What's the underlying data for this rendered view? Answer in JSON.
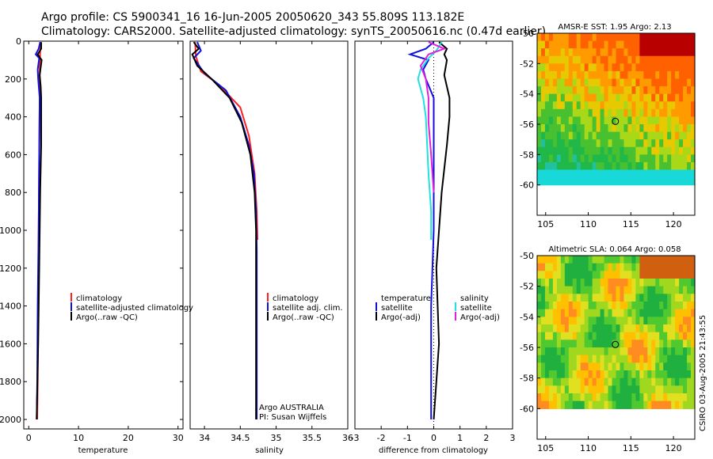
{
  "header": {
    "line1": "Argo profile: CS 5900341_16 16-Jun-2005 20050620_343 55.809S 113.182E",
    "line2": "Climatology: CARS2000. Satellite-adjusted climatology: synTS_20050616.nc (0.47d earlier)"
  },
  "colors": {
    "climatology": "#ff2020",
    "satellite": "#1010e0",
    "argo": "#000000",
    "salinity_sat": "#20e0e0",
    "salinity_argo": "#e020e0"
  },
  "chart_data": [
    {
      "type": "line",
      "id": "temperature",
      "xlabel": "temperature",
      "ylabel": "",
      "xlim": [
        -1,
        31
      ],
      "ylim": [
        2050,
        0
      ],
      "xticks": [
        "0",
        "10",
        "20",
        "30"
      ],
      "yticks": [
        "0",
        "200",
        "400",
        "600",
        "800",
        "1000",
        "1200",
        "1400",
        "1600",
        "1800",
        "2000"
      ],
      "legend": [
        "climatology",
        "satellite-adjusted climatology",
        "Argo(..raw -QC)"
      ],
      "series": [
        {
          "name": "climatology",
          "points": [
            [
              2.3,
              5
            ],
            [
              2.3,
              60
            ],
            [
              2.2,
              150
            ],
            [
              2.2,
              300
            ],
            [
              2.1,
              600
            ],
            [
              2.0,
              1000
            ],
            [
              1.9,
              1400
            ],
            [
              1.8,
              1800
            ],
            [
              1.7,
              2000
            ]
          ]
        },
        {
          "name": "satellite-adjusted climatology",
          "points": [
            [
              2.3,
              5
            ],
            [
              2.0,
              40
            ],
            [
              1.4,
              70
            ],
            [
              2.1,
              90
            ],
            [
              1.8,
              150
            ],
            [
              1.9,
              200
            ],
            [
              2.2,
              300
            ],
            [
              2.1,
              600
            ],
            [
              2.0,
              1000
            ],
            [
              1.8,
              1400
            ],
            [
              1.7,
              1800
            ],
            [
              1.6,
              2000
            ]
          ]
        },
        {
          "name": "Argo(..raw -QC)",
          "points": [
            [
              2.5,
              5
            ],
            [
              2.5,
              40
            ],
            [
              1.8,
              70
            ],
            [
              2.6,
              100
            ],
            [
              2.2,
              180
            ],
            [
              2.4,
              240
            ],
            [
              2.5,
              300
            ],
            [
              2.5,
              400
            ],
            [
              2.5,
              550
            ],
            [
              2.3,
              800
            ],
            [
              2.1,
              1200
            ],
            [
              1.9,
              1600
            ],
            [
              1.6,
              2000
            ]
          ]
        }
      ]
    },
    {
      "type": "line",
      "id": "salinity",
      "xlabel": "salinity",
      "xlim": [
        33.8,
        36.0
      ],
      "ylim": [
        2050,
        0
      ],
      "xticks": [
        "34",
        "34.5",
        "35",
        "35.5",
        "36"
      ],
      "legend": [
        "climatology",
        "satellite adj. clim.",
        "Argo(..raw -QC)"
      ],
      "series": [
        {
          "name": "climatology",
          "points": [
            [
              33.87,
              5
            ],
            [
              33.88,
              80
            ],
            [
              33.95,
              160
            ],
            [
              34.2,
              230
            ],
            [
              34.5,
              350
            ],
            [
              34.62,
              500
            ],
            [
              34.7,
              700
            ],
            [
              34.73,
              900
            ],
            [
              34.74,
              1050
            ]
          ]
        },
        {
          "name": "satellite adj. clim.",
          "points": [
            [
              33.9,
              5
            ],
            [
              33.95,
              50
            ],
            [
              33.85,
              90
            ],
            [
              34.0,
              170
            ],
            [
              34.3,
              260
            ],
            [
              34.5,
              400
            ],
            [
              34.62,
              550
            ],
            [
              34.69,
              700
            ],
            [
              34.72,
              900
            ],
            [
              34.73,
              1100
            ],
            [
              34.73,
              1500
            ],
            [
              34.73,
              2000
            ]
          ]
        },
        {
          "name": "Argo(..raw -QC)",
          "points": [
            [
              33.85,
              5
            ],
            [
              33.92,
              40
            ],
            [
              33.83,
              70
            ],
            [
              33.9,
              130
            ],
            [
              34.1,
              200
            ],
            [
              34.35,
              300
            ],
            [
              34.52,
              430
            ],
            [
              34.64,
              600
            ],
            [
              34.7,
              800
            ],
            [
              34.72,
              1000
            ],
            [
              34.72,
              1400
            ],
            [
              34.72,
              2000
            ]
          ]
        }
      ],
      "annotation": [
        "Argo AUSTRALIA",
        "PI: Susan Wijffels"
      ]
    },
    {
      "type": "line",
      "id": "difference",
      "xlabel": "difference from climatology",
      "xlim": [
        -3,
        3
      ],
      "ylim": [
        2050,
        0
      ],
      "xticks": [
        "-3",
        "-2",
        "-1",
        "0",
        "1",
        "2",
        "3"
      ],
      "legend_left": [
        "temperature",
        "satellite",
        "Argo(-adj)"
      ],
      "legend_right": [
        "salinity",
        "satellite",
        "Argo(-adj)"
      ],
      "series": [
        {
          "name": "temperature satellite",
          "points": [
            [
              0.0,
              5
            ],
            [
              -0.3,
              40
            ],
            [
              -0.9,
              70
            ],
            [
              -0.2,
              100
            ],
            [
              -0.4,
              150
            ],
            [
              -0.3,
              200
            ],
            [
              0.0,
              300
            ],
            [
              0.0,
              600
            ],
            [
              0.0,
              1000
            ],
            [
              -0.1,
              1400
            ],
            [
              -0.1,
              2000
            ]
          ]
        },
        {
          "name": "temperature Argo(-adj)",
          "points": [
            [
              0.2,
              5
            ],
            [
              0.5,
              40
            ],
            [
              0.4,
              70
            ],
            [
              0.5,
              100
            ],
            [
              0.4,
              180
            ],
            [
              0.5,
              240
            ],
            [
              0.6,
              300
            ],
            [
              0.6,
              400
            ],
            [
              0.5,
              550
            ],
            [
              0.3,
              800
            ],
            [
              0.1,
              1200
            ],
            [
              0.2,
              1600
            ],
            [
              0.0,
              2000
            ]
          ]
        },
        {
          "name": "salinity satellite",
          "points": [
            [
              0.3,
              5
            ],
            [
              0.1,
              50
            ],
            [
              -0.2,
              90
            ],
            [
              -0.5,
              150
            ],
            [
              -0.6,
              200
            ],
            [
              -0.4,
              300
            ],
            [
              -0.3,
              400
            ],
            [
              -0.2,
              700
            ],
            [
              -0.1,
              900
            ],
            [
              -0.1,
              1050
            ]
          ]
        },
        {
          "name": "salinity Argo(-adj)",
          "points": [
            [
              -0.2,
              5
            ],
            [
              0.4,
              40
            ],
            [
              -0.2,
              70
            ],
            [
              -0.5,
              130
            ],
            [
              -0.3,
              200
            ],
            [
              -0.2,
              300
            ],
            [
              -0.2,
              430
            ],
            [
              -0.1,
              600
            ],
            [
              0.0,
              800
            ]
          ]
        }
      ]
    }
  ],
  "maps": [
    {
      "title": "AMSR-E SST: 1.95 Argo: 2.13",
      "xticks": [
        "105",
        "110",
        "115",
        "120"
      ],
      "yticks": [
        "-50",
        "-52",
        "-54",
        "-56",
        "-58",
        "-60"
      ],
      "lon_range": [
        104,
        122.5
      ],
      "lat_range": [
        -62,
        -50
      ],
      "marker": [
        113.182,
        -55.809
      ]
    },
    {
      "title": "Altimetric SLA: 0.064 Argo: 0.058",
      "xticks": [
        "105",
        "110",
        "115",
        "120"
      ],
      "yticks": [
        "-50",
        "-52",
        "-54",
        "-56",
        "-58",
        "-60"
      ],
      "lon_range": [
        104,
        122.5
      ],
      "lat_range": [
        -62,
        -50
      ],
      "marker": [
        113.182,
        -55.809
      ]
    }
  ],
  "side_label": "CSIRO 03-Aug-2005 21:43:55"
}
